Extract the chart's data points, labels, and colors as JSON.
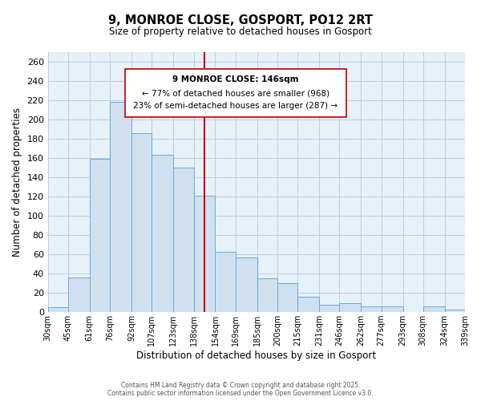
{
  "title": "9, MONROE CLOSE, GOSPORT, PO12 2RT",
  "subtitle": "Size of property relative to detached houses in Gosport",
  "xlabel": "Distribution of detached houses by size in Gosport",
  "ylabel": "Number of detached properties",
  "footer_line1": "Contains HM Land Registry data © Crown copyright and database right 2025.",
  "footer_line2": "Contains public sector information licensed under the Open Government Licence v3.0.",
  "bin_labels": [
    "30sqm",
    "45sqm",
    "61sqm",
    "76sqm",
    "92sqm",
    "107sqm",
    "123sqm",
    "138sqm",
    "154sqm",
    "169sqm",
    "185sqm",
    "200sqm",
    "215sqm",
    "231sqm",
    "246sqm",
    "262sqm",
    "277sqm",
    "293sqm",
    "308sqm",
    "324sqm",
    "339sqm"
  ],
  "bar_values": [
    5,
    36,
    159,
    218,
    186,
    163,
    150,
    121,
    63,
    57,
    35,
    30,
    16,
    8,
    9,
    6,
    6,
    0,
    6,
    3
  ],
  "bar_color": "#cfe0f0",
  "bar_edge_color": "#6aaad4",
  "grid_color": "#b8cfe8",
  "background_color": "#e8f0f8",
  "vline_color": "#c00000",
  "annotation_text_line1": "9 MONROE CLOSE: 146sqm",
  "annotation_text_line2": "← 77% of detached houses are smaller (968)",
  "annotation_text_line3": "23% of semi-detached houses are larger (287) →",
  "ylim": [
    0,
    270
  ],
  "yticks": [
    0,
    20,
    40,
    60,
    80,
    100,
    120,
    140,
    160,
    180,
    200,
    220,
    240,
    260
  ],
  "bin_edges": [
    30,
    45,
    61,
    76,
    92,
    107,
    123,
    138,
    154,
    169,
    185,
    200,
    215,
    231,
    246,
    262,
    277,
    293,
    308,
    324,
    339
  ]
}
